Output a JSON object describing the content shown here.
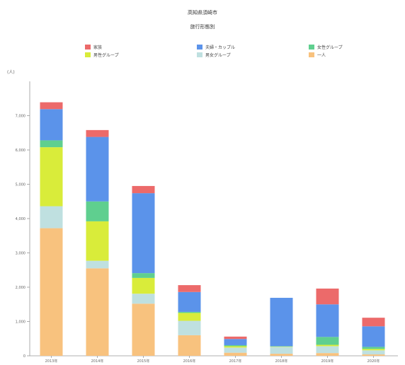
{
  "chart_data": {
    "type": "bar",
    "stacked": true,
    "title": "",
    "subtitle_1": "高知県須崎市",
    "subtitle_2": "旅行形態別",
    "ylabel": "(人)",
    "ylim": [
      0,
      8000
    ],
    "yticks": [
      "0",
      "1,000",
      "2,000",
      "3,000",
      "4,000",
      "5,000",
      "6,000",
      "7,000"
    ],
    "grid": false,
    "legend_position": "top",
    "categories": [
      "2013年",
      "2014年",
      "2015年",
      "2016年",
      "2017年",
      "2018年",
      "2019年",
      "2020年"
    ],
    "series": [
      {
        "name": "一人",
        "color": "#f8c27e",
        "values": [
          3720,
          2550,
          1520,
          600,
          90,
          60,
          80,
          40
        ]
      },
      {
        "name": "男女グループ",
        "color": "#bfe0e0",
        "values": [
          640,
          220,
          290,
          420,
          150,
          200,
          200,
          120
        ]
      },
      {
        "name": "男性グループ",
        "color": "#d9ec3a",
        "values": [
          1720,
          1150,
          460,
          230,
          40,
          10,
          40,
          40
        ]
      },
      {
        "name": "女性グループ",
        "color": "#5fcf8f",
        "values": [
          200,
          580,
          140,
          30,
          30,
          10,
          230,
          60
        ]
      },
      {
        "name": "夫婦・カップル",
        "color": "#5b93ea",
        "values": [
          910,
          1880,
          2330,
          580,
          180,
          1410,
          950,
          600
        ]
      },
      {
        "name": "家族",
        "color": "#ec6a6a",
        "values": [
          200,
          200,
          210,
          200,
          70,
          0,
          460,
          250
        ]
      }
    ]
  }
}
